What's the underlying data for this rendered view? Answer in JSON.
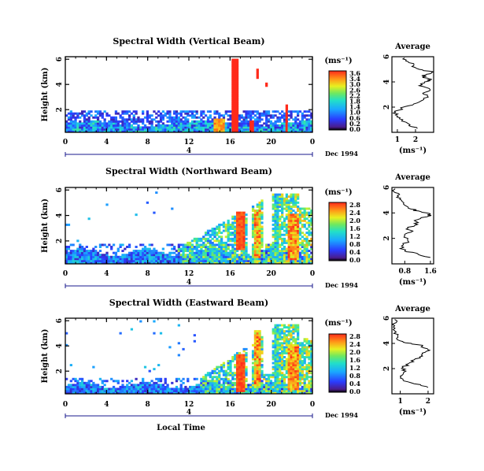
{
  "chart_data": [
    {
      "type": "heatmap",
      "title": "Spectral Width (Vertical Beam)",
      "ylabel": "Height (km)",
      "xlabel": "",
      "x_ticks": [
        "0",
        "4",
        "8",
        "12",
        "16",
        "20",
        "0"
      ],
      "y_ticks": [
        "2",
        "4",
        "6"
      ],
      "xlim": [
        0,
        24
      ],
      "ylim": [
        0.2,
        6.2
      ],
      "date_axis_label": "4",
      "date_note": "Dec 1994",
      "colorbar": {
        "title": "(ms⁻¹)",
        "ticks": [
          "3.6",
          "3.4",
          "3.0",
          "2.6",
          "2.2",
          "1.8",
          "1.4",
          "1.0",
          "0.6",
          "0.2",
          "0.0"
        ],
        "range": [
          0,
          3.6
        ]
      },
      "features": [
        {
          "desc": "low layer",
          "x_range": [
            0,
            24
          ],
          "height_range": [
            0.2,
            1.9
          ],
          "width_range": [
            0.2,
            2.6
          ]
        },
        {
          "desc": "deep column",
          "x_range": [
            16.3,
            16.8
          ],
          "height_range": [
            0.2,
            6.1
          ],
          "width": 3.6
        },
        {
          "desc": "deep column",
          "x_range": [
            21.3,
            21.6
          ],
          "height_range": [
            0.2,
            2.4
          ],
          "width": 3.6
        }
      ]
    },
    {
      "type": "line",
      "title": "Average",
      "xlabel": "(ms⁻¹)",
      "x_ticks": [
        "1",
        "2"
      ],
      "y_ticks": [
        "2",
        "4",
        "6"
      ],
      "xlim": [
        0.7,
        3.0
      ],
      "ylim": [
        0,
        6
      ],
      "series": [
        {
          "x": [
            2.1,
            1.7,
            1.3,
            1.0,
            0.9,
            1.2,
            1.6,
            2.2,
            2.7,
            2.4,
            2.8,
            2.2,
            2.5,
            2.9,
            2.4,
            2.6,
            3.0,
            2.2,
            1.9,
            1.6,
            1.4
          ],
          "y": [
            0.3,
            0.6,
            1.0,
            1.3,
            1.6,
            1.9,
            2.1,
            2.4,
            2.8,
            3.1,
            3.4,
            3.7,
            4.0,
            4.2,
            4.4,
            4.6,
            4.8,
            5.0,
            5.3,
            5.6,
            5.9
          ]
        }
      ]
    },
    {
      "type": "heatmap",
      "title": "Spectral Width (Northward Beam)",
      "ylabel": "Height (km)",
      "xlabel": "",
      "x_ticks": [
        "0",
        "4",
        "8",
        "12",
        "16",
        "20",
        "0"
      ],
      "y_ticks": [
        "2",
        "4",
        "6"
      ],
      "xlim": [
        0,
        24
      ],
      "ylim": [
        0.2,
        6.2
      ],
      "date_axis_label": "4",
      "date_note": "Dec 1994",
      "colorbar": {
        "title": "(ms⁻¹)",
        "ticks": [
          "2.8",
          "2.4",
          "2.0",
          "1.6",
          "1.2",
          "0.8",
          "0.4",
          "0.0"
        ],
        "range": [
          0,
          2.8
        ]
      },
      "features": [
        {
          "desc": "low layer",
          "x_range": [
            0,
            24
          ],
          "height_range": [
            0.2,
            1.6
          ],
          "width_range": [
            0.2,
            1.4
          ]
        },
        {
          "desc": "broad region",
          "x_range": [
            11,
            24
          ],
          "height_range": [
            0.2,
            5.8
          ],
          "width_range": [
            0.4,
            2.8
          ]
        },
        {
          "desc": "deep column",
          "x_range": [
            16.5,
            17.3
          ],
          "height_range": [
            1.3,
            4.3
          ],
          "width": 2.8
        }
      ]
    },
    {
      "type": "line",
      "title": "Average",
      "xlabel": "(ms⁻¹)",
      "x_ticks": [
        "0.8",
        "1.6"
      ],
      "y_ticks": [
        "2",
        "4",
        "6"
      ],
      "xlim": [
        0.4,
        1.7
      ],
      "ylim": [
        0,
        6
      ],
      "series": [
        {
          "x": [
            1.6,
            1.2,
            0.8,
            0.7,
            0.9,
            0.8,
            1.0,
            0.9,
            1.2,
            1.1,
            1.5,
            1.6,
            1.3,
            1.0,
            0.8,
            0.7,
            0.6,
            0.5,
            0.5
          ],
          "y": [
            0.5,
            0.8,
            1.0,
            1.4,
            1.8,
            2.2,
            2.5,
            2.8,
            3.1,
            3.4,
            3.7,
            3.9,
            4.1,
            4.3,
            4.6,
            5.0,
            5.3,
            5.6,
            5.9
          ]
        }
      ]
    },
    {
      "type": "heatmap",
      "title": "Spectral Width (Eastward Beam)",
      "ylabel": "Height (km)",
      "xlabel": "Local Time",
      "x_ticks": [
        "0",
        "4",
        "8",
        "12",
        "16",
        "20",
        "0"
      ],
      "y_ticks": [
        "2",
        "4",
        "6"
      ],
      "xlim": [
        0,
        24
      ],
      "ylim": [
        0.2,
        6.2
      ],
      "date_axis_label": "4",
      "date_note": "Dec 1994",
      "colorbar": {
        "title": "(ms⁻¹)",
        "ticks": [
          "2.8",
          "2.4",
          "2.0",
          "1.6",
          "1.2",
          "0.8",
          "0.4",
          "0.0"
        ],
        "range": [
          0,
          2.8
        ]
      },
      "features": [
        {
          "desc": "low layer",
          "x_range": [
            0,
            24
          ],
          "height_range": [
            0.2,
            1.4
          ],
          "width_range": [
            0.2,
            1.2
          ]
        },
        {
          "desc": "broad region",
          "x_range": [
            13,
            24
          ],
          "height_range": [
            0.2,
            5.6
          ],
          "width_range": [
            0.6,
            2.8
          ]
        },
        {
          "desc": "deep column",
          "x_range": [
            16.5,
            17.3
          ],
          "height_range": [
            0.4,
            3.4
          ],
          "width": 2.8
        }
      ]
    },
    {
      "type": "line",
      "title": "Average",
      "xlabel": "(ms⁻¹)",
      "x_ticks": [
        "1",
        "2"
      ],
      "y_ticks": [
        "2",
        "4",
        "6"
      ],
      "xlim": [
        0.7,
        2.2
      ],
      "ylim": [
        0,
        6
      ],
      "series": [
        {
          "x": [
            2.0,
            1.5,
            1.1,
            1.0,
            1.2,
            1.1,
            1.3,
            1.5,
            1.8,
            1.9,
            2.0,
            1.8,
            1.4,
            1.0,
            0.9,
            0.8,
            0.8,
            0.8
          ],
          "y": [
            0.5,
            0.8,
            1.1,
            1.4,
            1.8,
            2.1,
            2.4,
            2.7,
            3.0,
            3.3,
            3.5,
            3.8,
            4.0,
            4.2,
            4.6,
            5.0,
            5.4,
            5.9
          ]
        }
      ]
    }
  ]
}
